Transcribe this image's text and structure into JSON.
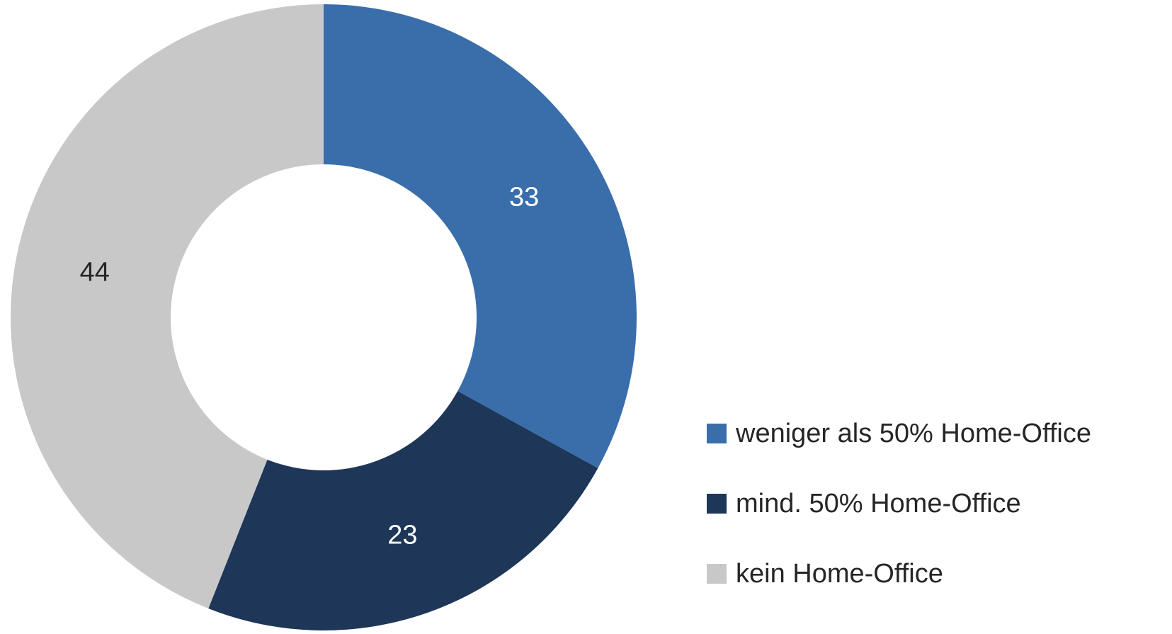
{
  "chart_data": {
    "type": "donut",
    "categories": [
      "weniger als 50% Home-Office",
      "mind. 50% Home-Office",
      "kein Home-Office"
    ],
    "values": [
      33,
      23,
      44
    ],
    "colors": [
      "#3a6eab",
      "#1e3657",
      "#c8c8c8"
    ],
    "label_colors": [
      "#ffffff",
      "#ffffff",
      "#262626"
    ],
    "legend": "right"
  }
}
